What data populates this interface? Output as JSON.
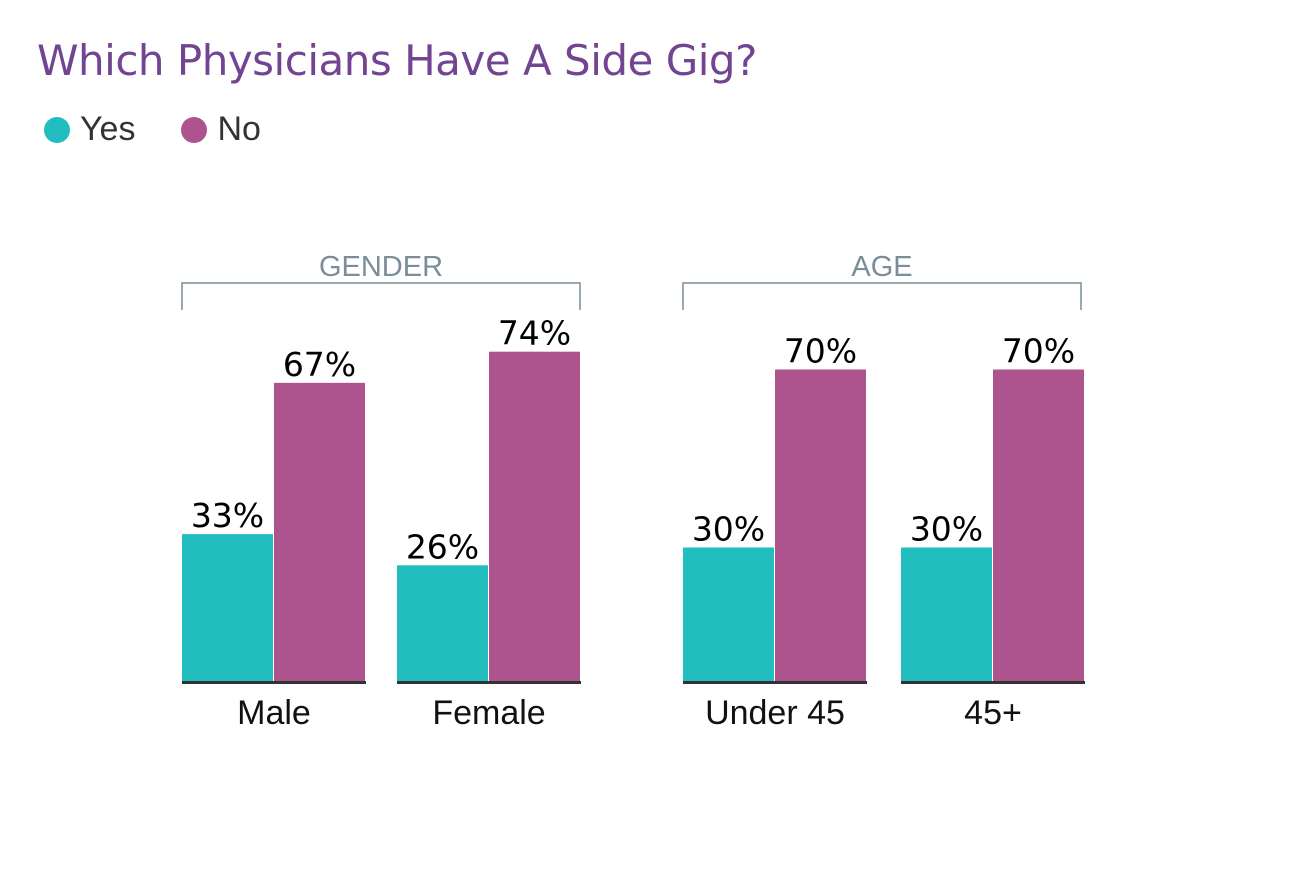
{
  "chart_data": {
    "type": "bar",
    "title": "Which Physicians Have A Side Gig?",
    "xlabel": "",
    "ylabel": "",
    "ylim": [
      0,
      100
    ],
    "grid": false,
    "legend_position": "top-left",
    "groups": [
      {
        "label": "GENDER",
        "categories": [
          "Male",
          "Female"
        ]
      },
      {
        "label": "AGE",
        "categories": [
          "Under 45",
          "45+"
        ]
      }
    ],
    "categories": [
      "Male",
      "Female",
      "Under 45",
      "45+"
    ],
    "series": [
      {
        "name": "Yes",
        "color": "#22BDBF",
        "values": [
          33,
          26,
          30,
          30
        ],
        "labels": [
          "33%",
          "26%",
          "30%",
          "30%"
        ]
      },
      {
        "name": "No",
        "color": "#AD548E",
        "values": [
          67,
          74,
          70,
          70
        ],
        "labels": [
          "67%",
          "74%",
          "70%",
          "70%"
        ]
      }
    ]
  },
  "colors": {
    "title": "#714592",
    "bracket": "#7A8E99",
    "axis": "#333333"
  }
}
